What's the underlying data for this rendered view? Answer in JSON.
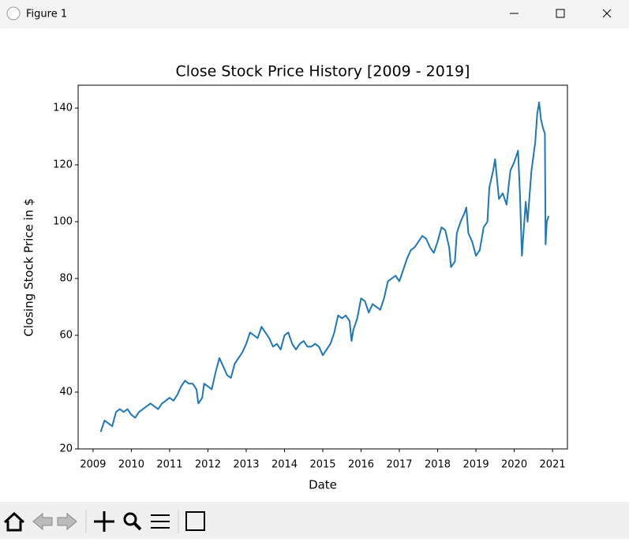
{
  "window": {
    "title": "Figure 1"
  },
  "chart_data": {
    "type": "line",
    "title": "Close Stock Price History [2009 - 2019]",
    "x_label": "Date",
    "y_label": "Closing Stock Price in $",
    "xlim": [
      2008.61,
      2021.39
    ],
    "ylim": [
      20,
      148.06
    ],
    "xticks": [
      2009,
      2010,
      2011,
      2012,
      2013,
      2014,
      2015,
      2016,
      2017,
      2018,
      2019,
      2020,
      2021
    ],
    "yticks": [
      20,
      40,
      60,
      80,
      100,
      120,
      140
    ],
    "x": [
      2009.2,
      2009.3,
      2009.4,
      2009.5,
      2009.6,
      2009.7,
      2009.8,
      2009.9,
      2010.0,
      2010.1,
      2010.2,
      2010.3,
      2010.4,
      2010.5,
      2010.6,
      2010.7,
      2010.8,
      2010.9,
      2011.0,
      2011.1,
      2011.2,
      2011.3,
      2011.4,
      2011.5,
      2011.6,
      2011.7,
      2011.75,
      2011.85,
      2011.9,
      2012.0,
      2012.1,
      2012.2,
      2012.3,
      2012.4,
      2012.5,
      2012.6,
      2012.7,
      2012.8,
      2012.9,
      2013.0,
      2013.1,
      2013.2,
      2013.3,
      2013.4,
      2013.5,
      2013.6,
      2013.7,
      2013.8,
      2013.9,
      2014.0,
      2014.1,
      2014.2,
      2014.3,
      2014.4,
      2014.5,
      2014.6,
      2014.7,
      2014.8,
      2014.9,
      2015.0,
      2015.1,
      2015.2,
      2015.3,
      2015.4,
      2015.5,
      2015.6,
      2015.7,
      2015.75,
      2015.8,
      2015.9,
      2016.0,
      2016.1,
      2016.2,
      2016.3,
      2016.4,
      2016.5,
      2016.6,
      2016.7,
      2016.8,
      2016.9,
      2017.0,
      2017.1,
      2017.2,
      2017.3,
      2017.4,
      2017.5,
      2017.6,
      2017.7,
      2017.8,
      2017.9,
      2018.0,
      2018.1,
      2018.2,
      2018.3,
      2018.35,
      2018.45,
      2018.5,
      2018.6,
      2018.7,
      2018.75,
      2018.8,
      2018.9,
      2019.0,
      2019.1,
      2019.2,
      2019.3,
      2019.35,
      2019.45,
      2019.5,
      2019.6,
      2019.7,
      2019.8,
      2019.9,
      2020.0,
      2020.1,
      2020.15,
      2020.2,
      2020.3,
      2020.35,
      2020.45,
      2020.55,
      2020.6,
      2020.65,
      2020.7,
      2020.75,
      2020.8,
      2020.82,
      2020.85,
      2020.9
    ],
    "series": [
      {
        "color": "#1f77b4",
        "values": [
          26,
          30,
          29,
          28,
          33,
          34,
          33,
          34,
          32,
          31,
          33,
          34,
          35,
          36,
          35,
          34,
          36,
          37,
          38,
          37,
          39,
          42,
          44,
          43,
          43,
          41,
          36,
          38,
          43,
          42,
          41,
          47,
          52,
          49,
          46,
          45,
          50,
          52,
          54,
          57,
          61,
          60,
          59,
          63,
          61,
          59,
          56,
          57,
          55,
          60,
          61,
          57,
          55,
          57,
          58,
          56,
          56,
          57,
          56,
          53,
          55,
          57,
          61,
          67,
          66,
          67,
          65,
          58,
          62,
          66,
          73,
          72,
          68,
          71,
          70,
          69,
          73,
          79,
          80,
          81,
          79,
          83,
          87,
          90,
          91,
          93,
          95,
          94,
          91,
          89,
          93,
          98,
          97,
          91,
          84,
          86,
          96,
          100,
          103,
          105,
          96,
          93,
          88,
          90,
          98,
          100,
          112,
          118,
          122,
          108,
          110,
          106,
          118,
          121,
          125,
          110,
          88,
          107,
          100,
          118,
          128,
          138,
          142,
          136,
          133,
          131,
          92,
          100,
          102
        ]
      }
    ]
  }
}
